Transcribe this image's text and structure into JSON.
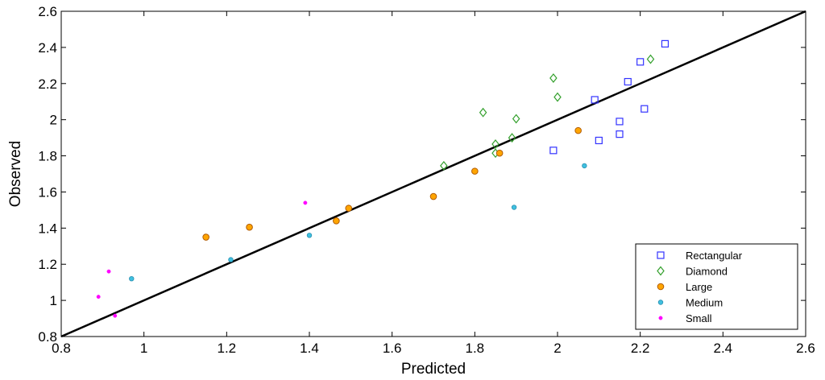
{
  "chart_data": {
    "type": "scatter",
    "xlabel": "Predicted",
    "ylabel": "Observed",
    "xlim": [
      0.8,
      2.6
    ],
    "ylim": [
      0.8,
      2.6
    ],
    "x_ticks": [
      "0.8",
      "1",
      "1.2",
      "1.4",
      "1.6",
      "1.8",
      "2",
      "2.2",
      "2.4",
      "2.6"
    ],
    "y_ticks": [
      "0.8",
      "1",
      "1.2",
      "1.4",
      "1.6",
      "1.8",
      "2",
      "2.2",
      "2.4",
      "2.6"
    ],
    "grid": false,
    "legend_position": "bottom-right",
    "reference_line": {
      "x": [
        0.8,
        2.6
      ],
      "y": [
        0.8,
        2.6
      ],
      "color": "#000000"
    },
    "series": [
      {
        "name": "Rectangular",
        "marker": "square",
        "color": "#3333ff",
        "points": [
          [
            1.99,
            1.83
          ],
          [
            2.09,
            2.11
          ],
          [
            2.1,
            1.885
          ],
          [
            2.15,
            1.99
          ],
          [
            2.15,
            1.92
          ],
          [
            2.17,
            2.21
          ],
          [
            2.2,
            2.32
          ],
          [
            2.21,
            2.06
          ],
          [
            2.26,
            2.42
          ]
        ]
      },
      {
        "name": "Diamond",
        "marker": "diamond",
        "color": "#33a02c",
        "points": [
          [
            1.725,
            1.745
          ],
          [
            1.82,
            2.04
          ],
          [
            1.85,
            1.815
          ],
          [
            1.85,
            1.865
          ],
          [
            1.89,
            1.9
          ],
          [
            1.9,
            2.005
          ],
          [
            1.99,
            2.23
          ],
          [
            2.0,
            2.125
          ],
          [
            2.225,
            2.335
          ]
        ]
      },
      {
        "name": "Large",
        "marker": "circle",
        "color": "#ffa500",
        "points": [
          [
            1.15,
            1.35
          ],
          [
            1.255,
            1.405
          ],
          [
            1.465,
            1.44
          ],
          [
            1.495,
            1.51
          ],
          [
            1.7,
            1.575
          ],
          [
            1.8,
            1.715
          ],
          [
            1.86,
            1.815
          ],
          [
            2.05,
            1.94
          ]
        ]
      },
      {
        "name": "Medium",
        "marker": "small-circle",
        "color": "#40c0e0",
        "points": [
          [
            0.97,
            1.12
          ],
          [
            1.21,
            1.225
          ],
          [
            1.4,
            1.36
          ],
          [
            1.895,
            1.515
          ],
          [
            2.065,
            1.745
          ]
        ]
      },
      {
        "name": "Small",
        "marker": "dot",
        "color": "#ff00ff",
        "points": [
          [
            0.89,
            1.02
          ],
          [
            0.915,
            1.16
          ],
          [
            0.93,
            0.915
          ],
          [
            1.39,
            1.54
          ]
        ]
      }
    ]
  }
}
